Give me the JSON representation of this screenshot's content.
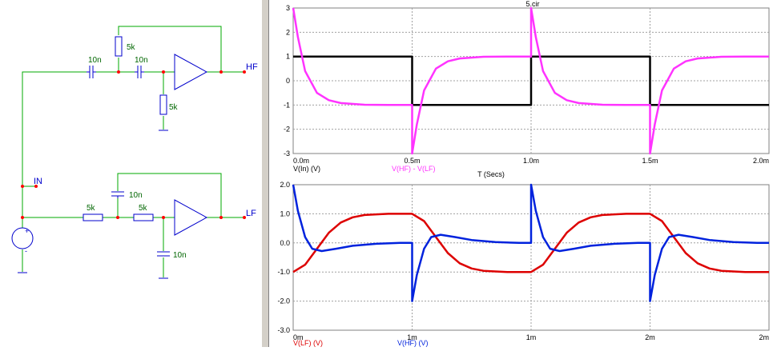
{
  "schematic": {
    "labels": {
      "hf_node": "HF",
      "lf_node": "LF",
      "in_node": "IN",
      "hf_c1": "10n",
      "hf_c2": "10n",
      "hf_r_top": "5k",
      "hf_r_bottom": "5k",
      "lf_r1": "5k",
      "lf_r2": "5k",
      "lf_c_top": "10n",
      "lf_c_bottom": "10n",
      "src_plus": "+",
      "src_minus": "-"
    }
  },
  "plot_title": "5.cir",
  "colors": {
    "wire": "#00aa00",
    "component": "#0000cc",
    "node": "#ff0000",
    "grid": "#a0a0a0",
    "vin": "#000000",
    "vhf_minus_vlf": "#ff33ff",
    "vlf": "#dd0000",
    "vhf": "#0022dd"
  },
  "chart_data": [
    {
      "type": "line",
      "xlim": [
        0,
        2.0
      ],
      "ylim": [
        -3,
        3
      ],
      "x_ticks": [
        "0.0m",
        "0.5m",
        "1.0m",
        "1.5m",
        "2.0m"
      ],
      "y_ticks": [
        "3",
        "2",
        "1",
        "0",
        "-1",
        "-2",
        "-3"
      ],
      "xlabel": "T (Secs)",
      "grid": true,
      "series": [
        {
          "name": "V(In) (V)",
          "color": "#000000",
          "x": [
            0,
            0.5,
            0.5,
            1.0,
            1.0,
            1.5,
            1.5,
            2.0
          ],
          "y": [
            1,
            1,
            -1,
            -1,
            1,
            1,
            -1,
            -1
          ]
        },
        {
          "name": "V(HF) - V(LF)",
          "color": "#ff33ff",
          "x": [
            0,
            0.02,
            0.05,
            0.1,
            0.15,
            0.2,
            0.3,
            0.4,
            0.5,
            0.5,
            0.52,
            0.55,
            0.6,
            0.65,
            0.7,
            0.8,
            0.9,
            1.0,
            1.0,
            1.02,
            1.05,
            1.1,
            1.15,
            1.2,
            1.3,
            1.4,
            1.5,
            1.5,
            1.52,
            1.55,
            1.6,
            1.65,
            1.7,
            1.8,
            1.9,
            2.0
          ],
          "y": [
            3,
            1.8,
            0.4,
            -0.5,
            -0.8,
            -0.92,
            -0.99,
            -1,
            -1,
            -3,
            -1.8,
            -0.4,
            0.5,
            0.8,
            0.92,
            0.99,
            1,
            1,
            3,
            1.8,
            0.4,
            -0.5,
            -0.8,
            -0.92,
            -0.99,
            -1,
            -1,
            -3,
            -1.8,
            -0.4,
            0.5,
            0.8,
            0.92,
            0.99,
            1,
            1
          ]
        }
      ]
    },
    {
      "type": "line",
      "xlim": [
        0,
        2.0
      ],
      "ylim": [
        -3,
        2
      ],
      "x_ticks": [
        "0m",
        "1m",
        "1m",
        "2m",
        "2m"
      ],
      "y_ticks": [
        "2.0",
        "1.0",
        "0.0",
        "-1.0",
        "-2.0",
        "-3.0"
      ],
      "grid": true,
      "series": [
        {
          "name": "V(LF) (V)",
          "color": "#dd0000",
          "x": [
            0,
            0.05,
            0.1,
            0.15,
            0.2,
            0.25,
            0.3,
            0.4,
            0.5,
            0.55,
            0.6,
            0.65,
            0.7,
            0.75,
            0.8,
            0.9,
            1.0,
            1.05,
            1.1,
            1.15,
            1.2,
            1.25,
            1.3,
            1.4,
            1.5,
            1.55,
            1.6,
            1.65,
            1.7,
            1.75,
            1.8,
            1.9,
            2.0
          ],
          "y": [
            -1,
            -0.75,
            -0.2,
            0.35,
            0.7,
            0.88,
            0.96,
            1.0,
            1.0,
            0.75,
            0.2,
            -0.35,
            -0.7,
            -0.88,
            -0.96,
            -1.0,
            -1.0,
            -0.75,
            -0.2,
            0.35,
            0.7,
            0.88,
            0.96,
            1.0,
            1.0,
            0.75,
            0.2,
            -0.35,
            -0.7,
            -0.88,
            -0.96,
            -1.0,
            -1.0
          ]
        },
        {
          "name": "V(HF) (V)",
          "color": "#0022dd",
          "x": [
            0,
            0.02,
            0.05,
            0.08,
            0.12,
            0.18,
            0.25,
            0.35,
            0.45,
            0.5,
            0.5,
            0.52,
            0.55,
            0.58,
            0.62,
            0.68,
            0.75,
            0.85,
            0.95,
            1.0,
            1.0,
            1.02,
            1.05,
            1.08,
            1.12,
            1.18,
            1.25,
            1.35,
            1.45,
            1.5,
            1.5,
            1.52,
            1.55,
            1.58,
            1.62,
            1.68,
            1.75,
            1.85,
            1.95,
            2.0
          ],
          "y": [
            2,
            1.1,
            0.2,
            -0.2,
            -0.28,
            -0.2,
            -0.1,
            -0.03,
            0,
            0,
            -2,
            -1.1,
            -0.2,
            0.2,
            0.28,
            0.2,
            0.1,
            0.03,
            0,
            0,
            2,
            1.1,
            0.2,
            -0.2,
            -0.28,
            -0.2,
            -0.1,
            -0.03,
            0,
            0,
            -2,
            -1.1,
            -0.2,
            0.2,
            0.28,
            0.2,
            0.1,
            0.03,
            0,
            0
          ]
        }
      ]
    }
  ]
}
